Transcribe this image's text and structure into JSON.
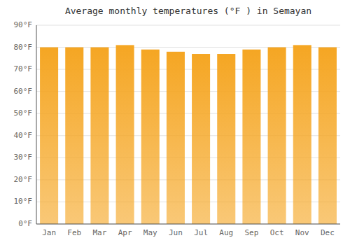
{
  "chart_data": {
    "type": "bar",
    "title": "Average monthly temperatures (°F ) in Semayan",
    "categories": [
      "Jan",
      "Feb",
      "Mar",
      "Apr",
      "May",
      "Jun",
      "Jul",
      "Aug",
      "Sep",
      "Oct",
      "Nov",
      "Dec"
    ],
    "values": [
      80,
      80,
      80,
      81,
      79,
      78,
      77,
      77,
      79,
      80,
      81,
      80
    ],
    "color": "#F5A623",
    "ylim": [
      0,
      90
    ],
    "yticks": [
      {
        "value": 0,
        "label": "0°F"
      },
      {
        "value": 10,
        "label": "10°F"
      },
      {
        "value": 20,
        "label": "20°F"
      },
      {
        "value": 30,
        "label": "30°F"
      },
      {
        "value": 40,
        "label": "40°F"
      },
      {
        "value": 50,
        "label": "50°F"
      },
      {
        "value": 60,
        "label": "60°F"
      },
      {
        "value": 70,
        "label": "70°F"
      },
      {
        "value": 80,
        "label": "80°F"
      },
      {
        "value": 90,
        "label": "90°F"
      }
    ],
    "grid": true
  }
}
